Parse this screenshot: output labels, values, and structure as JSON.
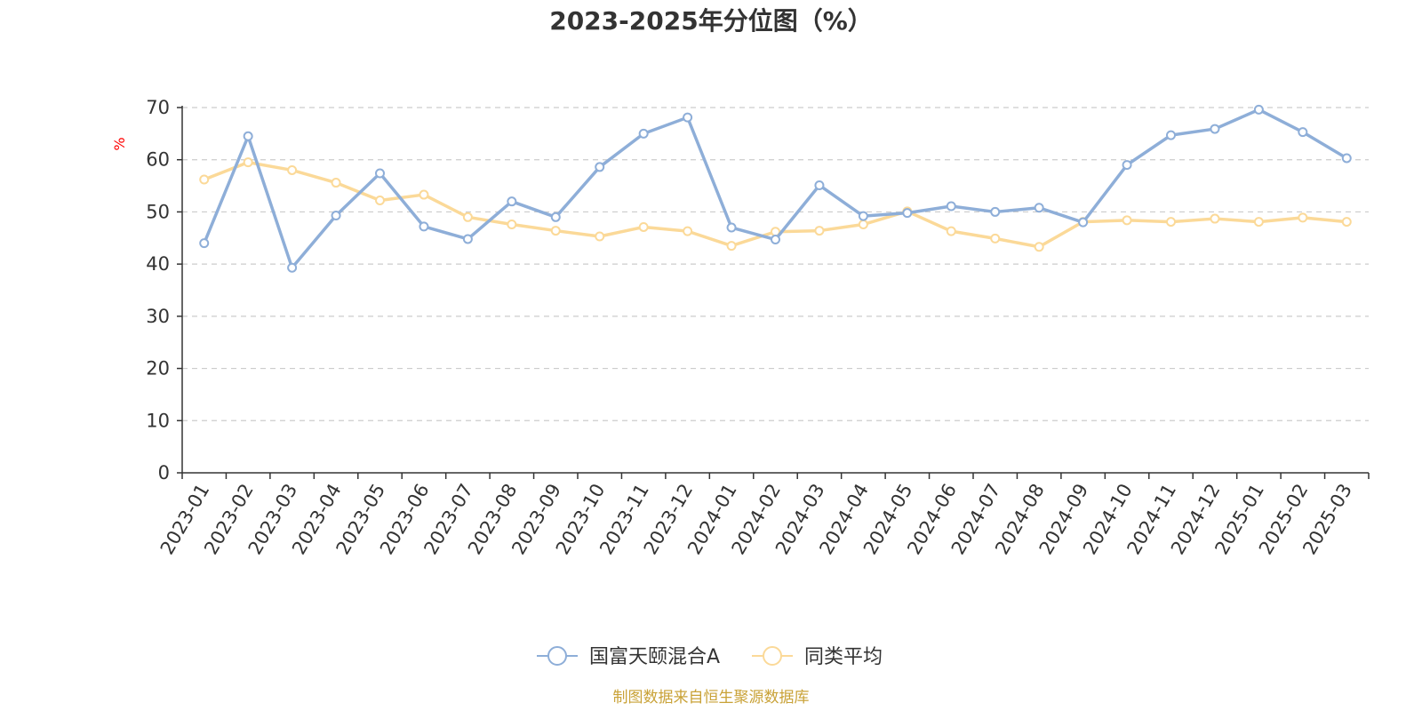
{
  "chart_data": {
    "type": "line",
    "title": "2023-2025年分位图（%）",
    "ylabel": "%",
    "ylim": [
      0,
      70
    ],
    "yticks": [
      0,
      10,
      20,
      30,
      40,
      50,
      60,
      70
    ],
    "grid": true,
    "legend_position": "bottom-center",
    "categories": [
      "2023-01",
      "2023-02",
      "2023-03",
      "2023-04",
      "2023-05",
      "2023-06",
      "2023-07",
      "2023-08",
      "2023-09",
      "2023-10",
      "2023-11",
      "2023-12",
      "2024-01",
      "2024-02",
      "2024-03",
      "2024-04",
      "2024-05",
      "2024-06",
      "2024-07",
      "2024-08",
      "2024-09",
      "2024-10",
      "2024-11",
      "2024-12",
      "2025-01",
      "2025-02",
      "2025-03"
    ],
    "series": [
      {
        "name": "国富天颐混合A",
        "color": "#8eaed8",
        "values": [
          44.0,
          64.5,
          39.3,
          49.3,
          57.4,
          47.2,
          44.8,
          52.0,
          49.0,
          58.6,
          65.0,
          68.1,
          47.0,
          44.7,
          55.1,
          49.2,
          49.8,
          51.1,
          50.0,
          50.8,
          48.0,
          59.0,
          64.7,
          65.9,
          69.6,
          65.3,
          60.3
        ]
      },
      {
        "name": "同类平均",
        "color": "#fbd998",
        "values": [
          56.2,
          59.5,
          58.0,
          55.6,
          52.2,
          53.3,
          49.0,
          47.6,
          46.4,
          45.3,
          47.1,
          46.3,
          43.5,
          46.2,
          46.4,
          47.6,
          50.1,
          46.3,
          44.9,
          43.3,
          48.1,
          48.4,
          48.1,
          48.7,
          48.1,
          48.9,
          48.1
        ]
      }
    ]
  },
  "colors": {
    "ylabel": "#ff0000",
    "source": "#c9a237",
    "axis": "#333333",
    "grid": "#cccccc"
  },
  "footer": {
    "source": "制图数据来自恒生聚源数据库"
  }
}
